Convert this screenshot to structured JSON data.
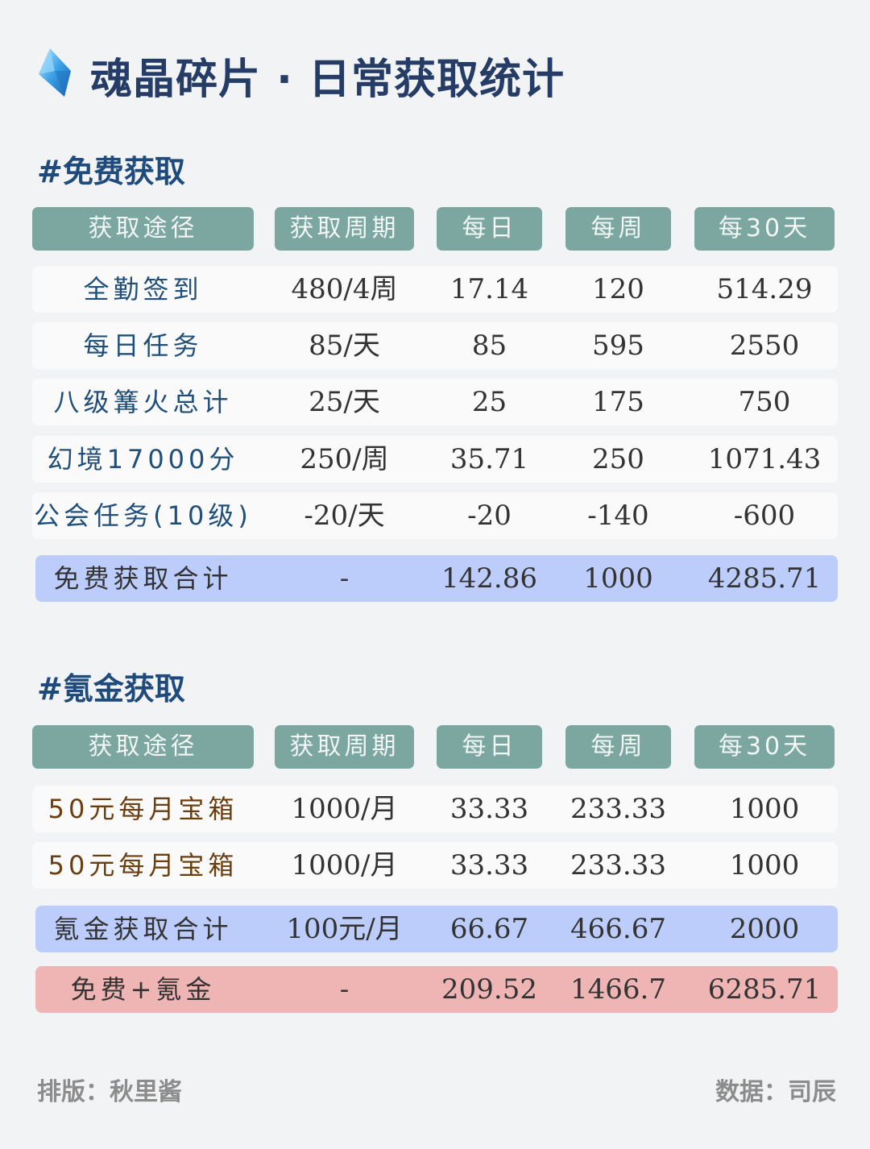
{
  "title": "魂晶碎片 · 日常获取统计",
  "colors": {
    "header_bg": "#7ca7a0",
    "free_total": "#bccdfc",
    "grand_total": "#efb4b4",
    "label_blue": "#1f4f7a",
    "label_brown": "#6b3e10",
    "title": "#253d66"
  },
  "headers": [
    "获取途径",
    "获取周期",
    "每日",
    "每周",
    "每30天"
  ],
  "free": {
    "heading": "#免费获取",
    "rows": [
      [
        "全勤签到",
        "480/4周",
        "17.14",
        "120",
        "514.29"
      ],
      [
        "每日任务",
        "85/天",
        "85",
        "595",
        "2550"
      ],
      [
        "八级篝火总计",
        "25/天",
        "25",
        "175",
        "750"
      ],
      [
        "幻境17000分",
        "250/周",
        "35.71",
        "250",
        "1071.43"
      ],
      [
        "公会任务(10级)",
        "-20/天",
        "-20",
        "-140",
        "-600"
      ]
    ],
    "total": [
      "免费获取合计",
      "-",
      "142.86",
      "1000",
      "4285.71"
    ]
  },
  "paid": {
    "heading": "#氪金获取",
    "rows": [
      [
        "50元每月宝箱",
        "1000/月",
        "33.33",
        "233.33",
        "1000"
      ],
      [
        "50元每月宝箱",
        "1000/月",
        "33.33",
        "233.33",
        "1000"
      ]
    ],
    "total": [
      "氪金获取合计",
      "100元/月",
      "66.67",
      "466.67",
      "2000"
    ],
    "grand_total": [
      "免费+氪金",
      "-",
      "209.52",
      "1466.7",
      "6285.71"
    ]
  },
  "footer": {
    "layout_credit": "排版：秋里酱",
    "data_credit": "数据：司辰"
  }
}
